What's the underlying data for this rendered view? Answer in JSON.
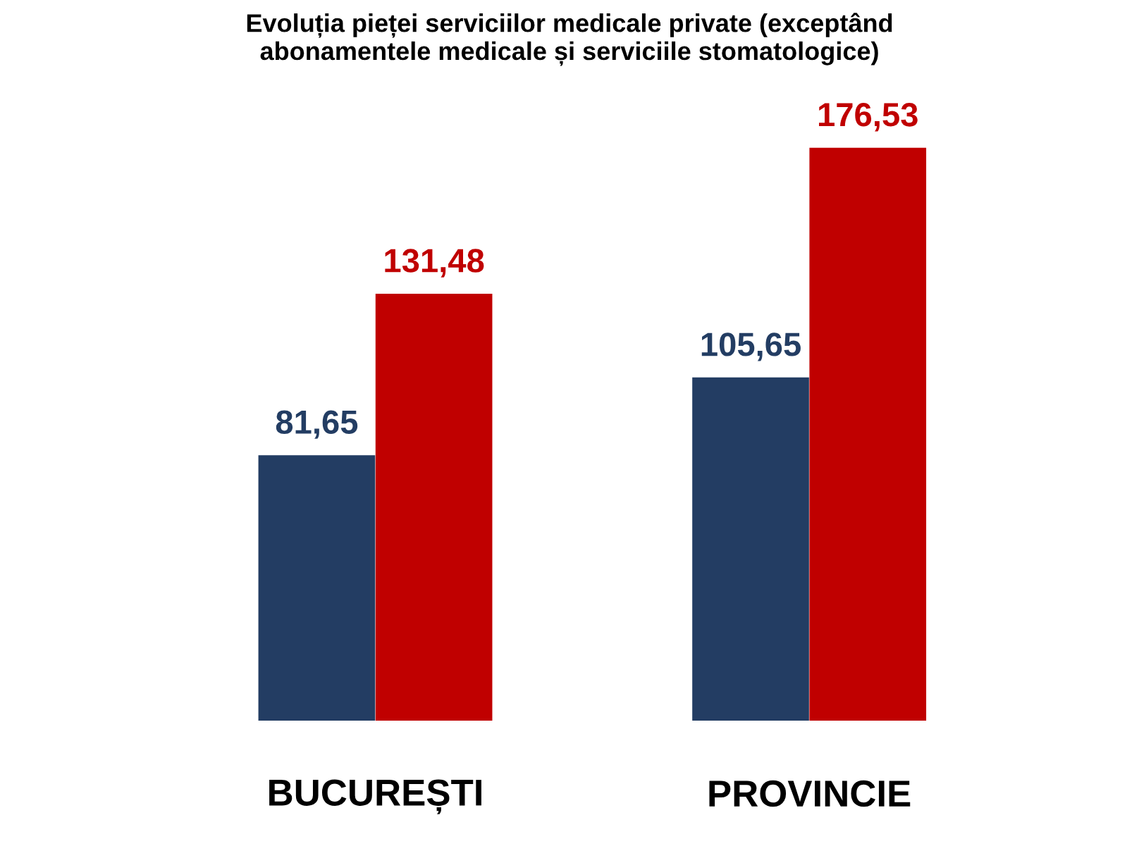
{
  "chart_data": {
    "type": "bar",
    "title": "Evoluția pieței serviciilor medicale private (exceptând\nabonamentele medicale și serviciile stomatologice)",
    "categories": [
      "BUCUREȘTI",
      "PROVINCIE"
    ],
    "series": [
      {
        "color": "#233d63",
        "values": [
          81.65,
          105.65
        ],
        "value_labels": [
          "81,65",
          "105,65"
        ]
      },
      {
        "color": "#c00000",
        "values": [
          131.48,
          176.53
        ],
        "value_labels": [
          "131,48",
          "176,53"
        ]
      }
    ],
    "grid": false,
    "legend": false,
    "tick_labels": "x"
  }
}
